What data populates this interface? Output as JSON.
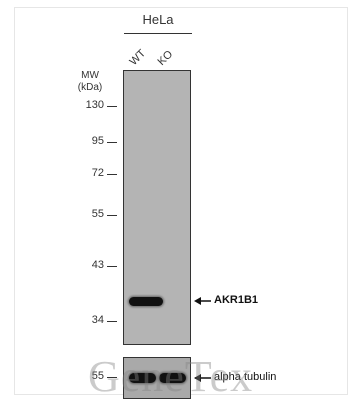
{
  "cell_line": "HeLa",
  "lanes": [
    "WT",
    "KO"
  ],
  "mw_title_line1": "MW",
  "mw_title_line2": "(kDa)",
  "markers": [
    "130",
    "95",
    "72",
    "55",
    "43",
    "34"
  ],
  "lower_marker": "55",
  "target_label": "AKR1B1",
  "loading_control_label": "alpha tubulin",
  "watermark": "GeneTex"
}
